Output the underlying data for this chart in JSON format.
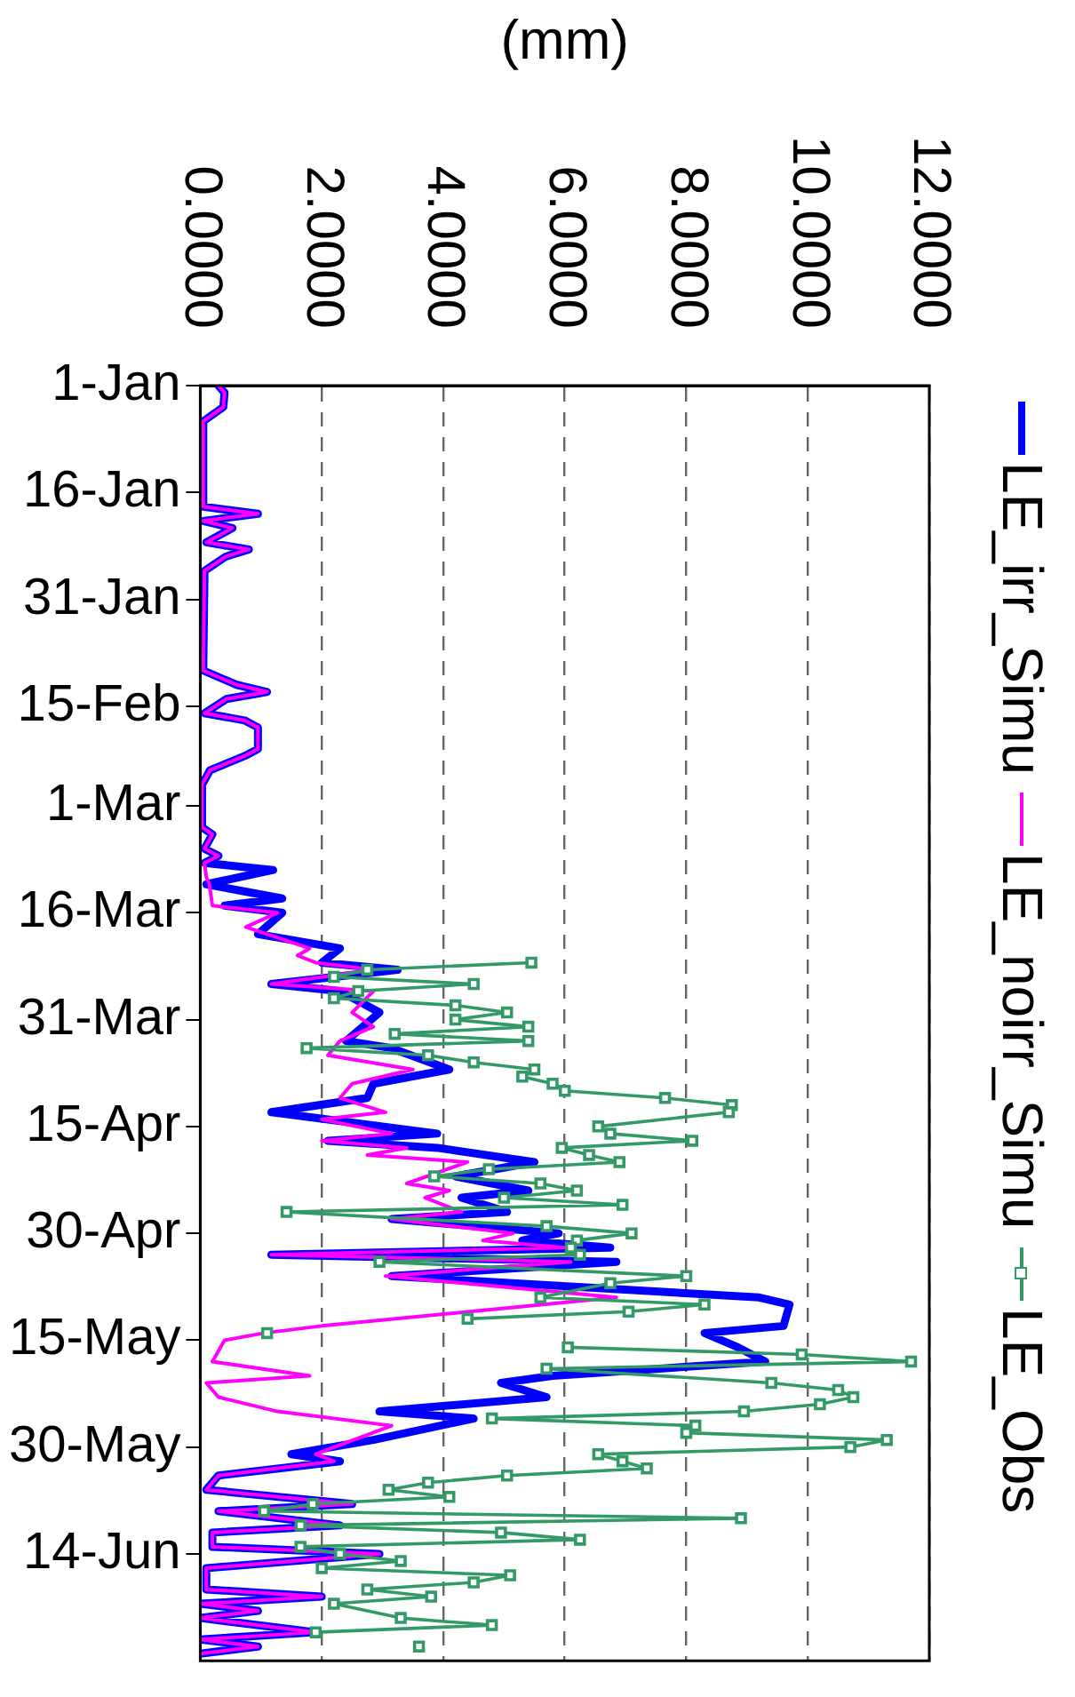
{
  "chart_data": {
    "type": "line",
    "orientation": "horizontal",
    "xlabel": "(mm)",
    "xlim": [
      0,
      12
    ],
    "ylim": [
      "--06-29",
      "--01-01"
    ],
    "yticks": [
      {
        "value": "--01-01",
        "label": "1-Jan"
      },
      {
        "value": "--01-16",
        "label": "16-Jan"
      },
      {
        "value": "--01-31",
        "label": "31-Jan"
      },
      {
        "value": "--02-15",
        "label": "15-Feb"
      },
      {
        "value": "--03-01",
        "label": "1-Mar"
      },
      {
        "value": "--03-16",
        "label": "16-Mar"
      },
      {
        "value": "--03-31",
        "label": "31-Mar"
      },
      {
        "value": "--04-15",
        "label": "15-Apr"
      },
      {
        "value": "--04-30",
        "label": "30-Apr"
      },
      {
        "value": "--05-15",
        "label": "15-May"
      },
      {
        "value": "--05-30",
        "label": "30-May"
      },
      {
        "value": "--06-14",
        "label": "14-Jun"
      }
    ],
    "xticks": [
      {
        "value": 0,
        "label": "0.0000"
      },
      {
        "value": 2,
        "label": "2.0000"
      },
      {
        "value": 4,
        "label": "4.0000"
      },
      {
        "value": 6,
        "label": "6.0000"
      },
      {
        "value": 8,
        "label": "8.0000"
      },
      {
        "value": 10,
        "label": "10.0000"
      },
      {
        "value": 12,
        "label": "12.0000"
      }
    ],
    "grid": "x",
    "legend": "right",
    "series": [
      {
        "name": "LE_irr_Simu",
        "color": "#0000ff",
        "marker": "none",
        "x": [
          "--01-01",
          "--01-02",
          "--01-04",
          "--01-06",
          "--01-18",
          "--01-19",
          "--01-20",
          "--01-21",
          "--01-23",
          "--01-24",
          "--01-25",
          "--01-27",
          "--02-10",
          "--02-12",
          "--02-13",
          "--02-14",
          "--02-16",
          "--02-17",
          "--02-18",
          "--02-21",
          "--02-22",
          "--02-24",
          "--02-26",
          "--03-04",
          "--03-05",
          "--03-07",
          "--03-08",
          "--03-09",
          "--03-10",
          "--03-12",
          "--03-14",
          "--03-15",
          "--03-16",
          "--03-19",
          "--03-21",
          "--03-23",
          "--03-24",
          "--03-26",
          "--03-27",
          "--03-30",
          "--04-03",
          "--04-04",
          "--04-07",
          "--04-09",
          "--04-11",
          "--04-13",
          "--04-16",
          "--04-17",
          "--04-18",
          "--04-20",
          "--04-22",
          "--04-24",
          "--04-25",
          "--04-27",
          "--04-28",
          "--04-30",
          "--05-01",
          "--05-02",
          "--05-03",
          "--05-04",
          "--05-06",
          "--05-09",
          "--05-10",
          "--05-13",
          "--05-14",
          "--05-16",
          "--05-18",
          "--05-20",
          "--05-21",
          "--05-23",
          "--05-25",
          "--05-26",
          "--05-29",
          "--05-31",
          "--06-01",
          "--06-03",
          "--06-05",
          "--06-07",
          "--06-08",
          "--06-10",
          "--06-11",
          "--06-13",
          "--06-14",
          "--06-16",
          "--06-19",
          "--06-20",
          "--06-21",
          "--06-22",
          "--06-23",
          "--06-25",
          "--06-26",
          "--06-27",
          "--06-28"
        ],
        "values": [
          0.3,
          0.4,
          0.38,
          0.05,
          0.05,
          0.95,
          0.05,
          0.53,
          0.1,
          0.8,
          0.42,
          0.07,
          0.05,
          0.6,
          1.1,
          0.43,
          0.07,
          0.73,
          0.95,
          0.95,
          0.73,
          0.16,
          0.03,
          0.03,
          0.2,
          0.07,
          0.3,
          0.07,
          1.2,
          0.1,
          1.35,
          0.4,
          1.35,
          0.95,
          2.3,
          2.0,
          3.25,
          1.17,
          2.3,
          2.95,
          2.4,
          3.15,
          4.1,
          2.85,
          2.75,
          1.17,
          3.9,
          2.1,
          3.9,
          5.5,
          4.2,
          5.4,
          4.3,
          5.05,
          3.15,
          5.9,
          5.3,
          6.75,
          1.17,
          6.85,
          3.15,
          9.2,
          9.7,
          9.6,
          8.3,
          8.85,
          9.3,
          5.8,
          4.95,
          5.7,
          2.95,
          4.5,
          2.85,
          1.5,
          2.3,
          0.3,
          0.1,
          2.5,
          0.3,
          2.3,
          0.2,
          0.2,
          2.95,
          0.1,
          0.1,
          2.0,
          0,
          0.95,
          0,
          1.9,
          0,
          0.95,
          0
        ]
      },
      {
        "name": "LE_noirr_Simu",
        "color": "#ff00ff",
        "marker": "none",
        "x": [
          "--01-01",
          "--01-02",
          "--01-04",
          "--01-06",
          "--01-18",
          "--01-19",
          "--01-20",
          "--01-21",
          "--01-23",
          "--01-24",
          "--01-25",
          "--01-27",
          "--02-10",
          "--02-12",
          "--02-13",
          "--02-14",
          "--02-16",
          "--02-17",
          "--02-18",
          "--02-21",
          "--02-22",
          "--02-24",
          "--02-26",
          "--03-04",
          "--03-05",
          "--03-07",
          "--03-08",
          "--03-09",
          "--03-11",
          "--03-12",
          "--03-15",
          "--03-16",
          "--03-18",
          "--03-21",
          "--03-22",
          "--03-23",
          "--03-24",
          "--03-26",
          "--03-27",
          "--03-30",
          "--04-01",
          "--04-03",
          "--04-05",
          "--04-07",
          "--04-09",
          "--04-11",
          "--04-13",
          "--04-14",
          "--04-16",
          "--04-17",
          "--04-18",
          "--04-19",
          "--04-20",
          "--04-23",
          "--04-24",
          "--04-25",
          "--04-27",
          "--04-28",
          "--04-30",
          "--05-01",
          "--05-02",
          "--05-03",
          "--05-04",
          "--05-06",
          "--05-09",
          "--05-13",
          "--05-14",
          "--05-15",
          "--05-18",
          "--05-20",
          "--05-21",
          "--05-23",
          "--05-25",
          "--05-27",
          "--05-31",
          "--06-01",
          "--06-03",
          "--06-05",
          "--06-07",
          "--06-08",
          "--06-10",
          "--06-11",
          "--06-13",
          "--06-14",
          "--06-16",
          "--06-19",
          "--06-20",
          "--06-21",
          "--06-22",
          "--06-23",
          "--06-25",
          "--06-26",
          "--06-27",
          "--06-28"
        ],
        "values": [
          0.3,
          0.4,
          0.38,
          0.05,
          0.05,
          0.95,
          0.05,
          0.53,
          0.1,
          0.8,
          0.42,
          0.07,
          0.05,
          0.6,
          1.1,
          0.43,
          0.07,
          0.73,
          0.95,
          0.95,
          0.73,
          0.16,
          0.03,
          0.03,
          0.2,
          0.07,
          0.3,
          0.07,
          0.1,
          0.15,
          0.2,
          1.27,
          0.75,
          1.8,
          1.6,
          1.9,
          2.85,
          1.17,
          2.85,
          2.5,
          2.85,
          2.3,
          2.1,
          3.5,
          2.5,
          2.3,
          3.05,
          2.0,
          3.15,
          2.0,
          3.4,
          2.75,
          4.4,
          3.4,
          4.1,
          3.7,
          4.3,
          3.15,
          5.15,
          4.65,
          6.0,
          1.17,
          6.1,
          3.05,
          6.85,
          2.0,
          1.05,
          0.4,
          0.2,
          1.8,
          0.1,
          0.3,
          1.27,
          3.15,
          1.9,
          2.2,
          0.3,
          0.1,
          2.5,
          0.3,
          2.3,
          0.2,
          0.2,
          2.95,
          0.1,
          0.1,
          2.0,
          0,
          0.95,
          0,
          1.9,
          0,
          0.95,
          0
        ]
      },
      {
        "name": "LE_Obs",
        "color": "#339966",
        "marker": "square",
        "x": [
          "--03-23",
          "--03-24",
          "--03-25",
          "--03-26",
          "--03-27",
          "--03-28",
          "--03-29",
          "--03-30",
          "--03-31",
          "--04-01",
          "--04-02",
          "--04-03",
          "--04-04",
          "--04-05",
          "--04-06",
          "--04-07",
          "--04-08",
          "--04-09",
          "--04-10",
          "--04-11",
          "--04-12",
          "--04-13",
          "--04-15",
          "--04-16",
          "--04-17",
          "--04-18",
          "--04-19",
          "--04-20",
          "--04-21",
          "--04-22",
          "--04-23",
          "--04-24",
          "--04-25",
          "--04-26",
          "--04-27",
          "--04-29",
          "--04-30",
          "--05-01",
          "--05-02",
          "--05-03",
          "--05-04",
          "--05-06",
          "--05-07",
          "--05-09",
          "--05-10",
          "--05-11",
          "--05-12",
          "--05-13",
          "--05-14",
          "--05-15",
          "--05-16",
          "--05-17",
          "--05-18",
          "--05-19",
          "--05-21",
          "--05-22",
          "--05-23",
          "--05-24",
          "--05-25",
          "--05-26",
          "--05-27",
          "--05-28",
          "--05-29",
          "--05-30",
          "--05-31",
          "--06-01",
          "--06-02",
          "--06-03",
          "--06-04",
          "--06-05",
          "--06-06",
          "--06-07",
          "--06-08",
          "--06-09",
          "--06-10",
          "--06-11",
          "--06-12",
          "--06-13",
          "--06-14",
          "--06-15",
          "--06-16",
          "--06-17",
          "--06-18",
          "--06-19",
          "--06-20",
          "--06-21",
          "--06-23",
          "--06-24",
          "--06-25",
          "--06-26",
          "--06-27"
        ],
        "values": [
          5.45,
          2.75,
          2.2,
          4.5,
          2.6,
          2.2,
          4.2,
          5.05,
          4.2,
          5.4,
          3.2,
          5.4,
          1.75,
          3.75,
          4.5,
          5.5,
          5.3,
          5.8,
          6.0,
          7.65,
          8.75,
          8.7,
          6.55,
          6.75,
          8.1,
          5.95,
          6.4,
          6.9,
          4.75,
          3.85,
          5.6,
          6.2,
          5.0,
          6.95,
          1.42,
          5.7,
          7.1,
          6.2,
          6.1,
          6.25,
          2.95,
          8.0,
          6.75,
          5.6,
          8.3,
          7.05,
          4.4,
          null,
          1.1,
          null,
          6.05,
          9.9,
          11.7,
          5.7,
          9.4,
          10.5,
          10.75,
          10.2,
          8.95,
          4.8,
          8.15,
          8.0,
          11.3,
          10.7,
          6.55,
          6.95,
          7.35,
          5.05,
          3.75,
          3.1,
          4.1,
          1.85,
          1.05,
          8.9,
          1.65,
          4.95,
          6.25,
          1.65,
          2.3,
          3.3,
          2.0,
          5.1,
          4.5,
          2.75,
          3.8,
          2.2,
          3.3,
          4.8,
          1.9,
          null,
          3.6
        ]
      }
    ]
  }
}
